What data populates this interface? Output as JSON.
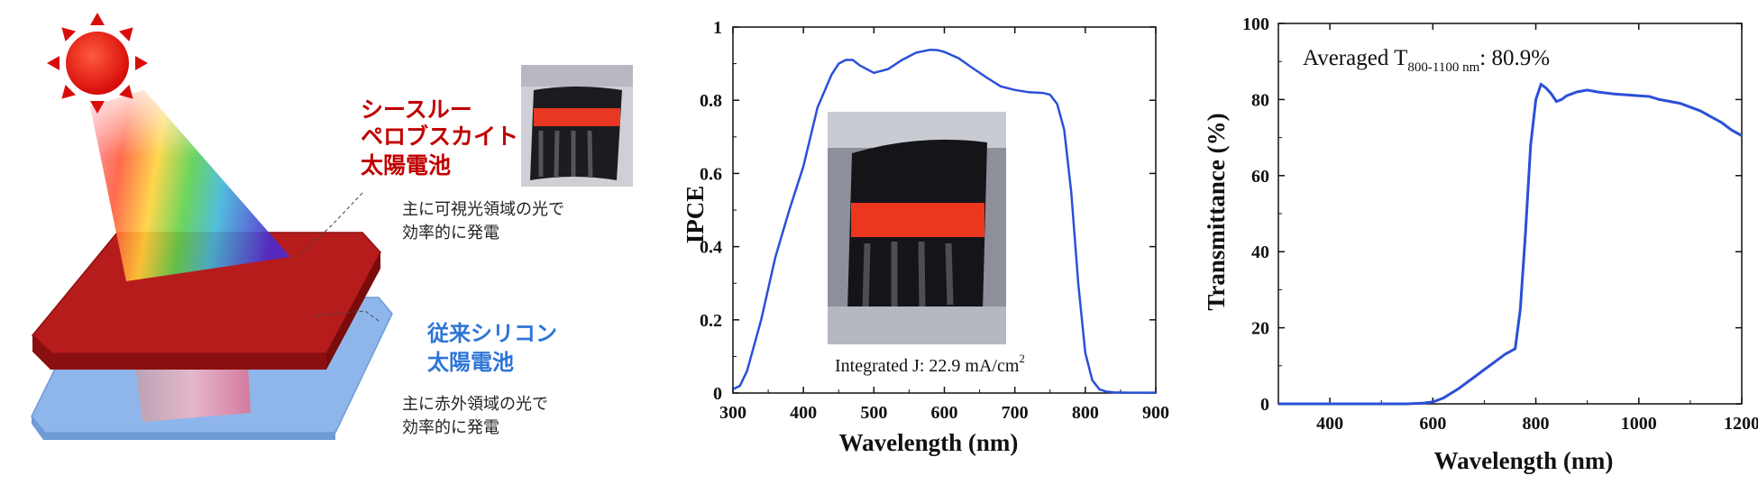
{
  "diagram": {
    "top_label": [
      "シースルー",
      "ペロブスカイト",
      "太陽電池"
    ],
    "top_note": [
      "主に可視光領域の光で",
      "効率的に発電"
    ],
    "bottom_label": [
      "従来シリコン",
      "太陽電池"
    ],
    "bottom_note": [
      "主に赤外領域の光で",
      "効率的に発電"
    ],
    "colors": {
      "top_label": "#c00000",
      "bottom_label": "#2e75d6",
      "top_layer": "#b71c1c",
      "bottom_layer": "#8fb6ea",
      "sun": "#e5140e"
    }
  },
  "chart_data": [
    {
      "type": "line",
      "xlabel": "Wavelength (nm)",
      "ylabel": "IPCE",
      "xlim": [
        300,
        900
      ],
      "ylim": [
        0,
        1
      ],
      "xticks": [
        "300",
        "400",
        "500",
        "600",
        "700",
        "800",
        "900"
      ],
      "yticks": [
        "0",
        "0.2",
        "0.4",
        "0.6",
        "0.8",
        "1"
      ],
      "annotation": "Integrated J: 22.9 mA/cm",
      "annotation_sup": "2",
      "color": "#2b4fd8",
      "series": [
        {
          "x": [
            300,
            310,
            320,
            340,
            360,
            380,
            400,
            420,
            440,
            450,
            460,
            470,
            480,
            500,
            520,
            540,
            560,
            580,
            590,
            600,
            620,
            640,
            660,
            680,
            700,
            720,
            740,
            750,
            760,
            770,
            780,
            790,
            800,
            810,
            820,
            830,
            840,
            860,
            880,
            900
          ],
          "y": [
            0.01,
            0.02,
            0.06,
            0.2,
            0.37,
            0.5,
            0.62,
            0.78,
            0.87,
            0.9,
            0.91,
            0.91,
            0.895,
            0.875,
            0.885,
            0.91,
            0.93,
            0.938,
            0.937,
            0.932,
            0.915,
            0.888,
            0.862,
            0.838,
            0.828,
            0.822,
            0.82,
            0.815,
            0.79,
            0.72,
            0.55,
            0.3,
            0.11,
            0.035,
            0.01,
            0.004,
            0.002,
            0.001,
            0.001,
            0.001
          ]
        }
      ]
    },
    {
      "type": "line",
      "xlabel": "Wavelength (nm)",
      "ylabel": "Transmittance (%)",
      "xlim": [
        300,
        1200
      ],
      "ylim": [
        0,
        100
      ],
      "xticks": [
        "400",
        "600",
        "800",
        "1000",
        "1200"
      ],
      "yticks": [
        "0",
        "20",
        "40",
        "60",
        "80",
        "100"
      ],
      "annotation_prefix": "Averaged T",
      "annotation_sub": "800-1100 nm",
      "annotation_suffix": ": 80.9%",
      "color": "#2b4fd8",
      "series": [
        {
          "x": [
            300,
            350,
            400,
            450,
            500,
            550,
            580,
            600,
            620,
            650,
            680,
            700,
            720,
            740,
            760,
            770,
            780,
            790,
            800,
            805,
            810,
            820,
            830,
            840,
            850,
            860,
            880,
            900,
            920,
            950,
            1000,
            1020,
            1040,
            1060,
            1080,
            1100,
            1120,
            1140,
            1160,
            1180,
            1200
          ],
          "y": [
            0,
            0,
            0,
            0,
            0,
            0,
            0.2,
            0.5,
            1.5,
            4,
            7,
            9,
            11,
            13,
            14.5,
            25,
            45,
            68,
            80,
            82,
            84,
            83,
            81.5,
            79.5,
            80,
            81,
            82,
            82.5,
            82,
            81.5,
            81,
            80.8,
            80,
            79.5,
            79,
            78,
            77,
            75.5,
            74,
            72,
            70.5
          ]
        }
      ]
    }
  ]
}
